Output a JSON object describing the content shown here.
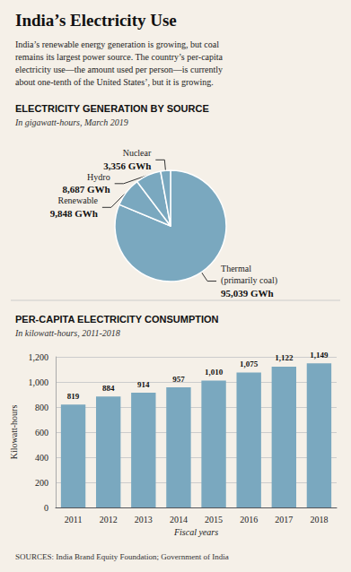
{
  "title": "India’s Electricity Use",
  "subtitle": "India’s renewable energy generation is growing, but coal\nremains its largest power source. The country’s per-capita\nelectricity use—the amount used per person—is currently\nabout one-tenth of the United States’, but it is growing.",
  "annotations": [
    "SOURCES: India Brand Equity Foundation; Government of India"
  ],
  "chart_data": [
    {
      "type": "pie",
      "title": "ELECTRICITY GENERATION BY SOURCE",
      "subtitle": "In gigawatt-hours, March 2019",
      "categories": [
        "Thermal\n(primarily coal)",
        "Renewable",
        "Hydro",
        "Nuclear"
      ],
      "values": [
        95039,
        9848,
        8687,
        3356
      ],
      "value_labels": [
        "95,039 GWh",
        "9,848 GWh",
        "8,687 GWh",
        "3,356 GWh"
      ],
      "color": "#7aa8bf",
      "data_labels": true
    },
    {
      "type": "bar",
      "title": "PER-CAPITA ELECTRICITY CONSUMPTION",
      "subtitle": "In kilowatt-hours, 2011-2018",
      "categories": [
        "2011",
        "2012",
        "2013",
        "2014",
        "2015",
        "2016",
        "2017",
        "2018"
      ],
      "values": [
        819,
        884,
        914,
        957,
        1010,
        1075,
        1122,
        1149
      ],
      "value_labels": [
        "819",
        "884",
        "914",
        "957",
        "1,010",
        "1,075",
        "1,122",
        "1,149"
      ],
      "color": "#7aa8bf",
      "xlabel": "Fiscal years",
      "ylabel": "Kilowatt-hours",
      "ylim": [
        0,
        1200
      ],
      "yticks": [
        0,
        200,
        400,
        600,
        800,
        {
          "value": 1000,
          "label": "1,000"
        },
        {
          "value": 1200,
          "label": "1,200"
        }
      ],
      "grid": true,
      "data_labels": true
    }
  ]
}
